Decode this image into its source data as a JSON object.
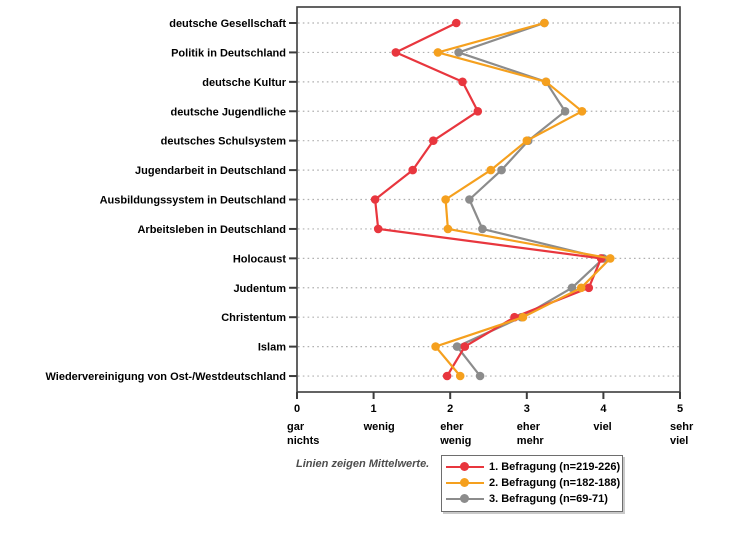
{
  "note": "Linien zeigen Mittelwerte.",
  "colors": {
    "series_red": "#e8363e",
    "series_orange": "#f5a01e",
    "series_gray": "#8c8c8c",
    "gridline": "#b0b0b0",
    "axis": "#3c3c3c",
    "label_text": "#000000",
    "note_text": "#4d4d4d"
  },
  "chart_data": {
    "type": "line",
    "orientation": "horizontal-categories",
    "title": "",
    "xlabel": "",
    "ylabel": "",
    "xlim": [
      0,
      5
    ],
    "grid": "horizontal dotted lines, one per category",
    "legend_position": "bottom-right",
    "note": "Linien zeigen Mittelwerte.",
    "categories": [
      "deutsche Gesellschaft",
      "Politik in Deutschland",
      "deutsche Kultur",
      "deutsche Jugendliche",
      "deutsches Schulsystem",
      "Jugendarbeit in Deutschland",
      "Ausbildungssystem in Deutschland",
      "Arbeitsleben in Deutschland",
      "Holocaust",
      "Judentum",
      "Christentum",
      "Islam",
      "Wiedervereinigung von Ost-/Westdeutschland"
    ],
    "x_ticks": [
      {
        "value": 0,
        "number": "0",
        "label_lines": [
          "gar",
          "nichts"
        ]
      },
      {
        "value": 1,
        "number": "1",
        "label_lines": [
          "wenig"
        ]
      },
      {
        "value": 2,
        "number": "2",
        "label_lines": [
          "eher",
          "wenig"
        ]
      },
      {
        "value": 3,
        "number": "3",
        "label_lines": [
          "eher",
          "mehr"
        ]
      },
      {
        "value": 4,
        "number": "4",
        "label_lines": [
          "viel"
        ]
      },
      {
        "value": 5,
        "number": "5",
        "label_lines": [
          "sehr",
          "viel"
        ]
      }
    ],
    "series": [
      {
        "name": "1. Befragung (n=219-226)",
        "color": "#e8363e",
        "values": [
          2.08,
          1.29,
          2.16,
          2.36,
          1.78,
          1.51,
          1.02,
          1.06,
          3.97,
          3.81,
          2.84,
          2.19,
          1.96
        ]
      },
      {
        "name": "2. Befragung (n=182-188)",
        "color": "#f5a01e",
        "values": [
          3.23,
          1.84,
          3.25,
          3.72,
          3.0,
          2.53,
          1.94,
          1.97,
          4.09,
          3.71,
          2.95,
          1.81,
          2.13
        ]
      },
      {
        "name": "3. Befragung (n=69-71)",
        "color": "#8c8c8c",
        "values": [
          3.23,
          2.11,
          3.25,
          3.5,
          3.02,
          2.67,
          2.25,
          2.42,
          4.0,
          3.59,
          2.93,
          2.09,
          2.39
        ]
      }
    ],
    "draw_order_series_indices": [
      2,
      0,
      1
    ]
  }
}
